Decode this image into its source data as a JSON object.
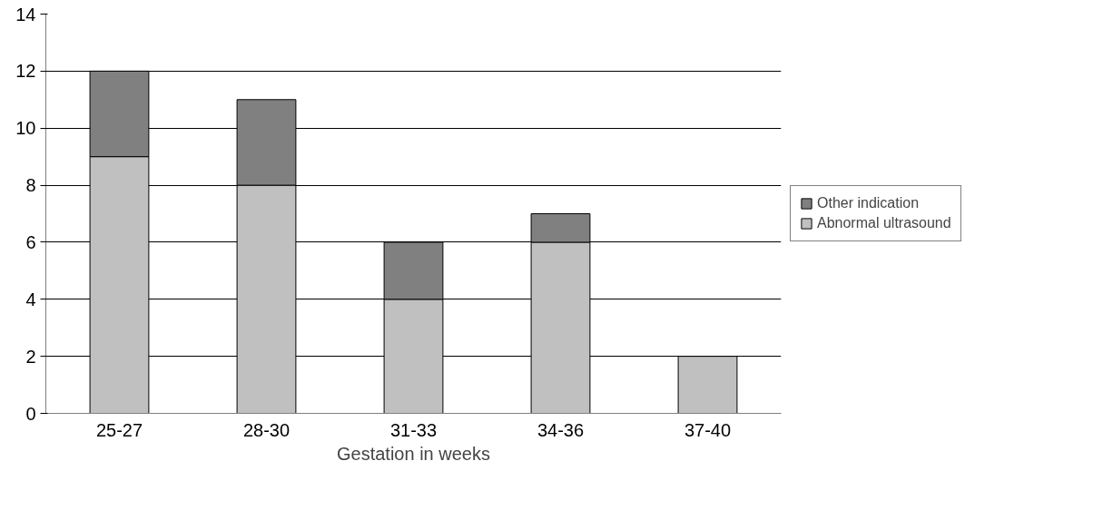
{
  "chart_data": {
    "type": "bar",
    "stacked": true,
    "xlabel": "Gestation in weeks",
    "categories": [
      "25-27",
      "28-30",
      "31-33",
      "34-36",
      "37-40"
    ],
    "series": [
      {
        "name": "Abnormal ultrasound",
        "color": "#c0c0c0",
        "values": [
          9,
          8,
          4,
          6,
          2
        ]
      },
      {
        "name": "Other indication",
        "color": "#808080",
        "values": [
          3,
          3,
          2,
          1,
          null
        ]
      }
    ],
    "ylim": [
      0,
      14
    ],
    "yticks": [
      0,
      2,
      4,
      6,
      8,
      10,
      12,
      14
    ],
    "grid": "y",
    "legend": "right"
  }
}
